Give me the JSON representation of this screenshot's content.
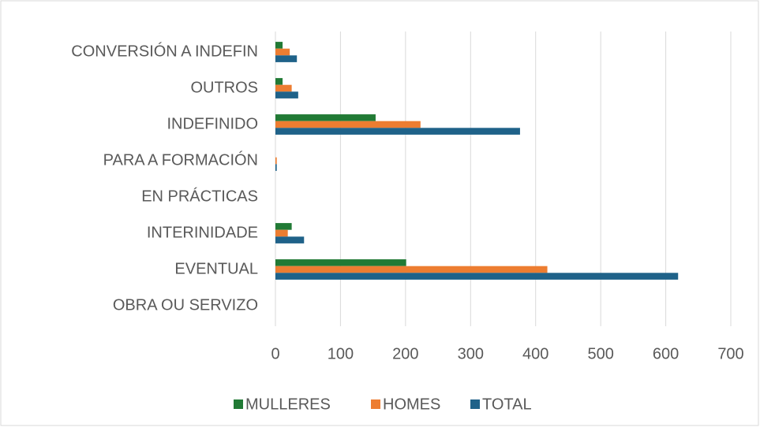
{
  "chart_data": {
    "type": "hbar",
    "categories": [
      "CONVERSIÓN A INDEFIN",
      "OUTROS",
      "INDEFINIDO",
      "PARA A FORMACIÓN",
      "EN PRÁCTICAS",
      "INTERINIDADE",
      "EVENTUAL",
      "OBRA OU SERVIZO"
    ],
    "series": [
      {
        "name": "MULLERES",
        "color": "#217a35",
        "values": [
          11,
          11,
          154,
          0,
          0,
          25,
          201,
          0
        ]
      },
      {
        "name": "HOMES",
        "color": "#ed7d31",
        "values": [
          22,
          25,
          223,
          2,
          0,
          19,
          418,
          0
        ]
      },
      {
        "name": "TOTAL",
        "color": "#1f6289",
        "values": [
          33,
          35,
          376,
          2,
          0,
          44,
          619,
          0
        ]
      }
    ],
    "xlim": [
      0,
      700
    ],
    "xticks": [
      0,
      100,
      200,
      300,
      400,
      500,
      600,
      700
    ],
    "grid": true,
    "legend": "bottom"
  }
}
